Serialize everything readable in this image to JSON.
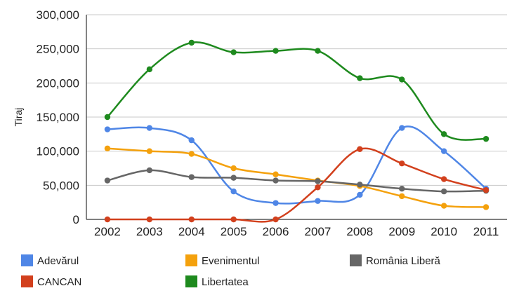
{
  "chart_data": {
    "type": "line",
    "title": "",
    "xlabel": "",
    "ylabel": "Tiraj",
    "x": [
      "2002",
      "2003",
      "2004",
      "2005",
      "2006",
      "2007",
      "2008",
      "2009",
      "2010",
      "2011"
    ],
    "ylim": [
      0,
      300000
    ],
    "yticks": [
      0,
      50000,
      100000,
      150000,
      200000,
      250000,
      300000
    ],
    "ytick_labels": [
      "0",
      "50,000",
      "100,000",
      "150,000",
      "200,000",
      "250,000",
      "300,000"
    ],
    "grid": true,
    "legend_position": "bottom",
    "series": [
      {
        "name": "Adevărul",
        "color": "#4f86e6",
        "values": [
          132000,
          134000,
          116000,
          41000,
          24000,
          27000,
          36000,
          134000,
          100000,
          45000
        ]
      },
      {
        "name": "Evenimentul",
        "color": "#f4a10d",
        "values": [
          104000,
          100000,
          96000,
          75000,
          66000,
          57000,
          49000,
          34000,
          20000,
          18000
        ]
      },
      {
        "name": "România Liberă",
        "color": "#666666",
        "values": [
          57000,
          72000,
          62000,
          61000,
          57000,
          56000,
          51000,
          45000,
          41000,
          42000
        ]
      },
      {
        "name": "CANCAN",
        "color": "#d2401d",
        "values": [
          0,
          0,
          0,
          0,
          0,
          47000,
          103000,
          82000,
          59000,
          43000
        ]
      },
      {
        "name": "Libertatea",
        "color": "#1e8a1e",
        "values": [
          150000,
          220000,
          259000,
          245000,
          247000,
          247000,
          207000,
          205000,
          125000,
          118000
        ]
      }
    ]
  }
}
